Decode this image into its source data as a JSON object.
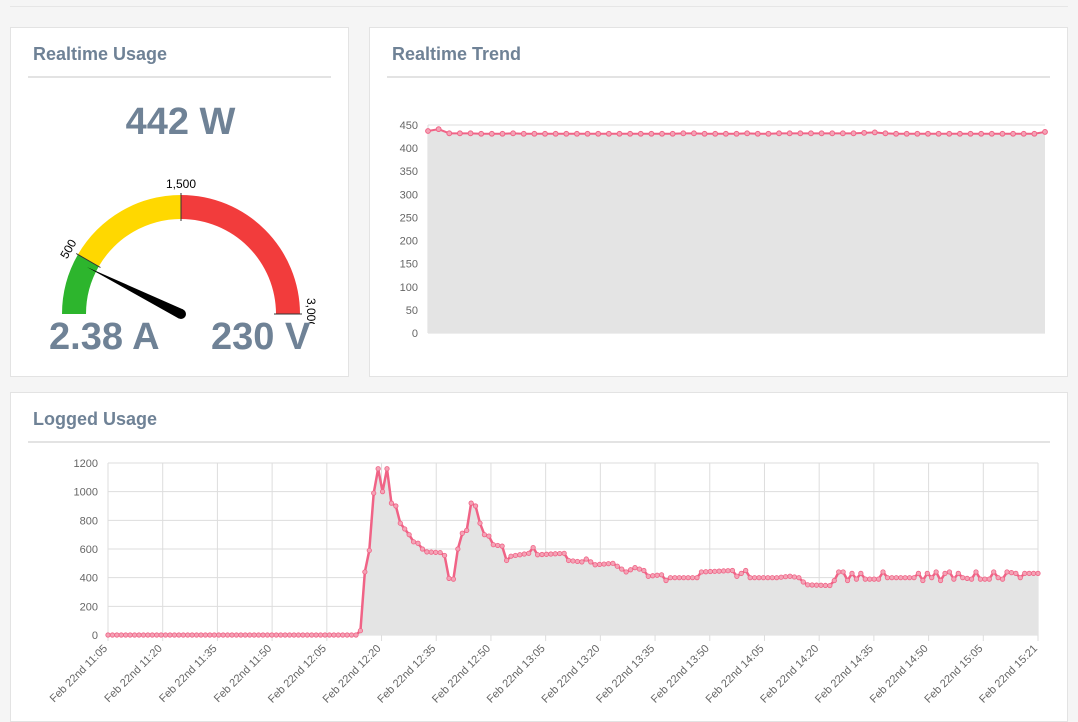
{
  "realtime_usage": {
    "title": "Realtime Usage",
    "power": "442 W",
    "current": "2.38 A",
    "voltage": "230 V",
    "gauge": {
      "min": 0,
      "max": 3000,
      "value": 442,
      "ticks": [
        "500",
        "1,500",
        "3,00C"
      ],
      "bands": [
        {
          "from": 0,
          "to": 500,
          "color": "#2db52d"
        },
        {
          "from": 500,
          "to": 1500,
          "color": "#ffd800"
        },
        {
          "from": 1500,
          "to": 3000,
          "color": "#f23c3c"
        }
      ]
    }
  },
  "realtime_trend": {
    "title": "Realtime Trend",
    "chart_data": {
      "type": "area",
      "ylim": [
        0,
        450
      ],
      "yticks": [
        "450",
        "400",
        "350",
        "300",
        "250",
        "200",
        "150",
        "100",
        "50",
        "0"
      ],
      "color": "#f06386",
      "values": [
        437,
        441,
        432,
        432,
        432,
        431,
        431,
        431,
        432,
        431,
        431,
        431,
        431,
        431,
        431,
        431,
        431,
        431,
        431,
        431,
        431,
        431,
        431,
        431,
        432,
        432,
        431,
        431,
        431,
        431,
        432,
        431,
        431,
        432,
        432,
        432,
        432,
        432,
        432,
        432,
        432,
        433,
        434,
        432,
        431,
        431,
        431,
        431,
        431,
        431,
        431,
        431,
        431,
        431,
        431,
        431,
        431,
        431,
        435
      ]
    }
  },
  "logged_usage": {
    "title": "Logged Usage",
    "chart_data": {
      "type": "area",
      "ylim": [
        0,
        1200
      ],
      "yticks": [
        "1200",
        "1000",
        "800",
        "600",
        "400",
        "200",
        "0"
      ],
      "color": "#f06386",
      "xticks": [
        "Feb 22nd 11:05",
        "Feb 22nd 11:20",
        "Feb 22nd 11:35",
        "Feb 22nd 11:50",
        "Feb 22nd 12:05",
        "Feb 22nd 12:20",
        "Feb 22nd 12:35",
        "Feb 22nd 12:50",
        "Feb 22nd 13:05",
        "Feb 22nd 13:20",
        "Feb 22nd 13:35",
        "Feb 22nd 13:50",
        "Feb 22nd 14:05",
        "Feb 22nd 14:20",
        "Feb 22nd 14:35",
        "Feb 22nd 14:50",
        "Feb 22nd 15:05",
        "Feb 22nd 15:21"
      ],
      "keypoints": [
        [
          0,
          0
        ],
        [
          56,
          0
        ],
        [
          57,
          30
        ],
        [
          58,
          440
        ],
        [
          59,
          590
        ],
        [
          60,
          990
        ],
        [
          61,
          1160
        ],
        [
          62,
          1000
        ],
        [
          63,
          1160
        ],
        [
          64,
          920
        ],
        [
          65,
          900
        ],
        [
          66,
          780
        ],
        [
          67,
          740
        ],
        [
          68,
          700
        ],
        [
          69,
          650
        ],
        [
          70,
          640
        ],
        [
          71,
          600
        ],
        [
          72,
          580
        ],
        [
          75,
          575
        ],
        [
          76,
          555
        ],
        [
          77,
          395
        ],
        [
          78,
          390
        ],
        [
          79,
          600
        ],
        [
          80,
          710
        ],
        [
          81,
          730
        ],
        [
          82,
          920
        ],
        [
          83,
          900
        ],
        [
          84,
          780
        ],
        [
          85,
          700
        ],
        [
          86,
          690
        ],
        [
          87,
          630
        ],
        [
          89,
          620
        ],
        [
          90,
          520
        ],
        [
          91,
          550
        ],
        [
          95,
          570
        ],
        [
          96,
          610
        ],
        [
          97,
          560
        ],
        [
          103,
          570
        ],
        [
          104,
          520
        ],
        [
          107,
          510
        ],
        [
          108,
          530
        ],
        [
          110,
          490
        ],
        [
          114,
          500
        ],
        [
          116,
          460
        ],
        [
          117,
          440
        ],
        [
          119,
          470
        ],
        [
          121,
          450
        ],
        [
          122,
          410
        ],
        [
          125,
          420
        ],
        [
          126,
          380
        ],
        [
          127,
          400
        ],
        [
          133,
          400
        ],
        [
          134,
          440
        ],
        [
          141,
          450
        ],
        [
          142,
          410
        ],
        [
          144,
          450
        ],
        [
          145,
          400
        ],
        [
          151,
          400
        ],
        [
          154,
          410
        ],
        [
          156,
          400
        ],
        [
          157,
          370
        ],
        [
          158,
          350
        ],
        [
          163,
          345
        ],
        [
          164,
          380
        ],
        [
          165,
          440
        ],
        [
          166,
          440
        ],
        [
          167,
          380
        ],
        [
          168,
          430
        ],
        [
          169,
          390
        ],
        [
          170,
          430
        ],
        [
          171,
          390
        ],
        [
          174,
          390
        ],
        [
          175,
          440
        ],
        [
          176,
          400
        ],
        [
          182,
          400
        ],
        [
          183,
          430
        ],
        [
          184,
          380
        ],
        [
          185,
          430
        ],
        [
          186,
          400
        ],
        [
          187,
          440
        ],
        [
          188,
          380
        ],
        [
          189,
          430
        ],
        [
          190,
          440
        ],
        [
          191,
          390
        ],
        [
          192,
          430
        ],
        [
          193,
          400
        ],
        [
          195,
          390
        ],
        [
          196,
          440
        ],
        [
          197,
          390
        ],
        [
          199,
          390
        ],
        [
          200,
          440
        ],
        [
          201,
          400
        ],
        [
          202,
          390
        ],
        [
          203,
          440
        ],
        [
          205,
          430
        ],
        [
          206,
          400
        ],
        [
          207,
          430
        ],
        [
          210,
          430
        ]
      ]
    }
  }
}
